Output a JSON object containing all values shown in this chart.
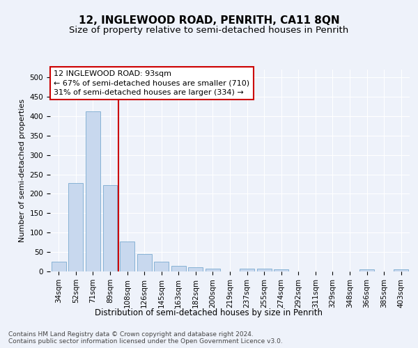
{
  "title": "12, INGLEWOOD ROAD, PENRITH, CA11 8QN",
  "subtitle": "Size of property relative to semi-detached houses in Penrith",
  "xlabel": "Distribution of semi-detached houses by size in Penrith",
  "ylabel": "Number of semi-detached properties",
  "categories": [
    "34sqm",
    "52sqm",
    "71sqm",
    "89sqm",
    "108sqm",
    "126sqm",
    "145sqm",
    "163sqm",
    "182sqm",
    "200sqm",
    "219sqm",
    "237sqm",
    "255sqm",
    "274sqm",
    "292sqm",
    "311sqm",
    "329sqm",
    "348sqm",
    "366sqm",
    "385sqm",
    "403sqm"
  ],
  "values": [
    25,
    228,
    413,
    222,
    77,
    45,
    25,
    15,
    10,
    7,
    0,
    7,
    7,
    5,
    0,
    0,
    0,
    0,
    5,
    0,
    5
  ],
  "bar_color": "#c8d8ee",
  "bar_edge_color": "#7aaad0",
  "property_line_label": "12 INGLEWOOD ROAD: 93sqm",
  "annotation_line1": "← 67% of semi-detached houses are smaller (710)",
  "annotation_line2": "31% of semi-detached houses are larger (334) →",
  "annotation_box_color": "#ffffff",
  "annotation_box_edge_color": "#cc0000",
  "vline_color": "#cc0000",
  "vline_x_index": 3.5,
  "ylim": [
    0,
    520
  ],
  "yticks": [
    0,
    50,
    100,
    150,
    200,
    250,
    300,
    350,
    400,
    450,
    500
  ],
  "footnote": "Contains HM Land Registry data © Crown copyright and database right 2024.\nContains public sector information licensed under the Open Government Licence v3.0.",
  "title_fontsize": 11,
  "subtitle_fontsize": 9.5,
  "xlabel_fontsize": 8.5,
  "ylabel_fontsize": 8,
  "tick_fontsize": 7.5,
  "annotation_fontsize": 8,
  "footnote_fontsize": 6.5,
  "background_color": "#eef2fa",
  "grid_color": "#ffffff"
}
